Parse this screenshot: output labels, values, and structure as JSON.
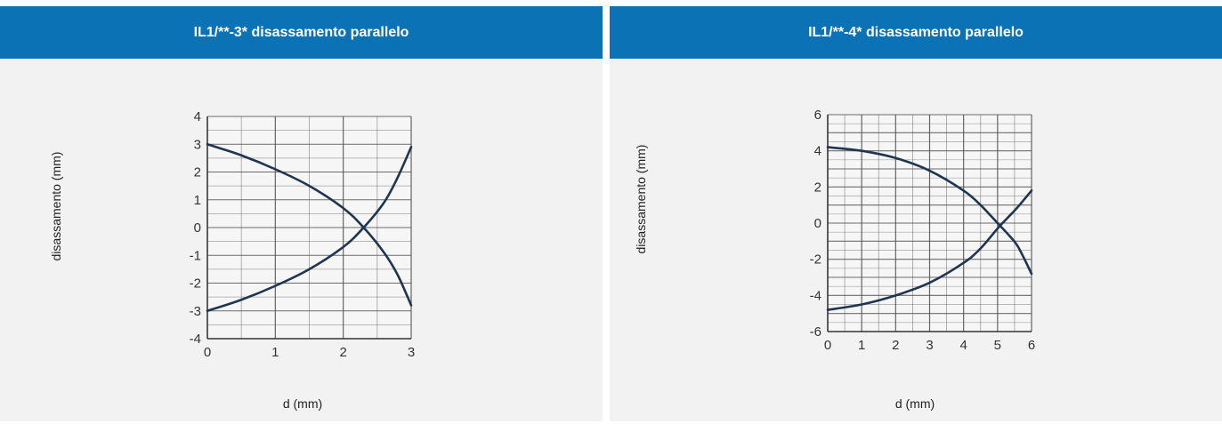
{
  "panels": [
    {
      "title": "IL1/**-3* disassamento parallelo",
      "ylabel": "disassamento (mm)",
      "xlabel": "d (mm)"
    },
    {
      "title": "IL1/**-4*  disassamento parallelo",
      "ylabel": "disassamento (mm)",
      "xlabel": "d (mm)"
    }
  ],
  "colors": {
    "header": "#0b72b5",
    "panel": "#f2f2f2",
    "curve": "#1f3550",
    "grid": "#555555"
  },
  "chart_data": [
    {
      "type": "line",
      "title": "IL1/**-3* disassamento parallelo",
      "xlabel": "d (mm)",
      "ylabel": "disassamento (mm)",
      "xlim": [
        0,
        3
      ],
      "ylim": [
        -4,
        4
      ],
      "x_ticks": [
        "0",
        "1",
        "2",
        "3"
      ],
      "y_ticks": [
        "4",
        "3",
        "2",
        "1",
        "0",
        "-1",
        "-2",
        "-3",
        "-4"
      ],
      "grid": true,
      "series": [
        {
          "x": [
            0,
            0.5,
            1,
            1.5,
            2,
            2.3,
            2.6,
            2.8,
            3
          ],
          "y": [
            3,
            2.6,
            2.1,
            1.5,
            0.7,
            0,
            -0.9,
            -1.7,
            -2.8
          ]
        },
        {
          "x": [
            0,
            0.5,
            1,
            1.5,
            2,
            2.3,
            2.6,
            2.8,
            3
          ],
          "y": [
            -3,
            -2.6,
            -2.1,
            -1.5,
            -0.7,
            0,
            0.9,
            1.8,
            2.9
          ]
        }
      ]
    },
    {
      "type": "line",
      "title": "IL1/**-4*  disassamento parallelo",
      "xlabel": "d (mm)",
      "ylabel": "disassamento (mm)",
      "xlim": [
        0,
        6
      ],
      "ylim": [
        -6,
        6
      ],
      "x_ticks": [
        "0",
        "1",
        "2",
        "3",
        "4",
        "5",
        "6"
      ],
      "y_ticks": [
        "6",
        "4",
        "2",
        "0",
        "-2",
        "-4",
        "-6"
      ],
      "grid": true,
      "series": [
        {
          "x": [
            0,
            1,
            2,
            3,
            4,
            4.5,
            5,
            5.3,
            5.6,
            6
          ],
          "y": [
            4.2,
            4.0,
            3.6,
            2.9,
            1.8,
            1.0,
            0,
            -0.6,
            -1.3,
            -2.8
          ]
        },
        {
          "x": [
            0,
            1,
            2,
            3,
            4,
            4.5,
            5,
            5.3,
            5.6,
            6
          ],
          "y": [
            -4.8,
            -4.5,
            -4.0,
            -3.3,
            -2.2,
            -1.4,
            -0.3,
            0.3,
            0.9,
            1.8
          ]
        }
      ]
    }
  ]
}
